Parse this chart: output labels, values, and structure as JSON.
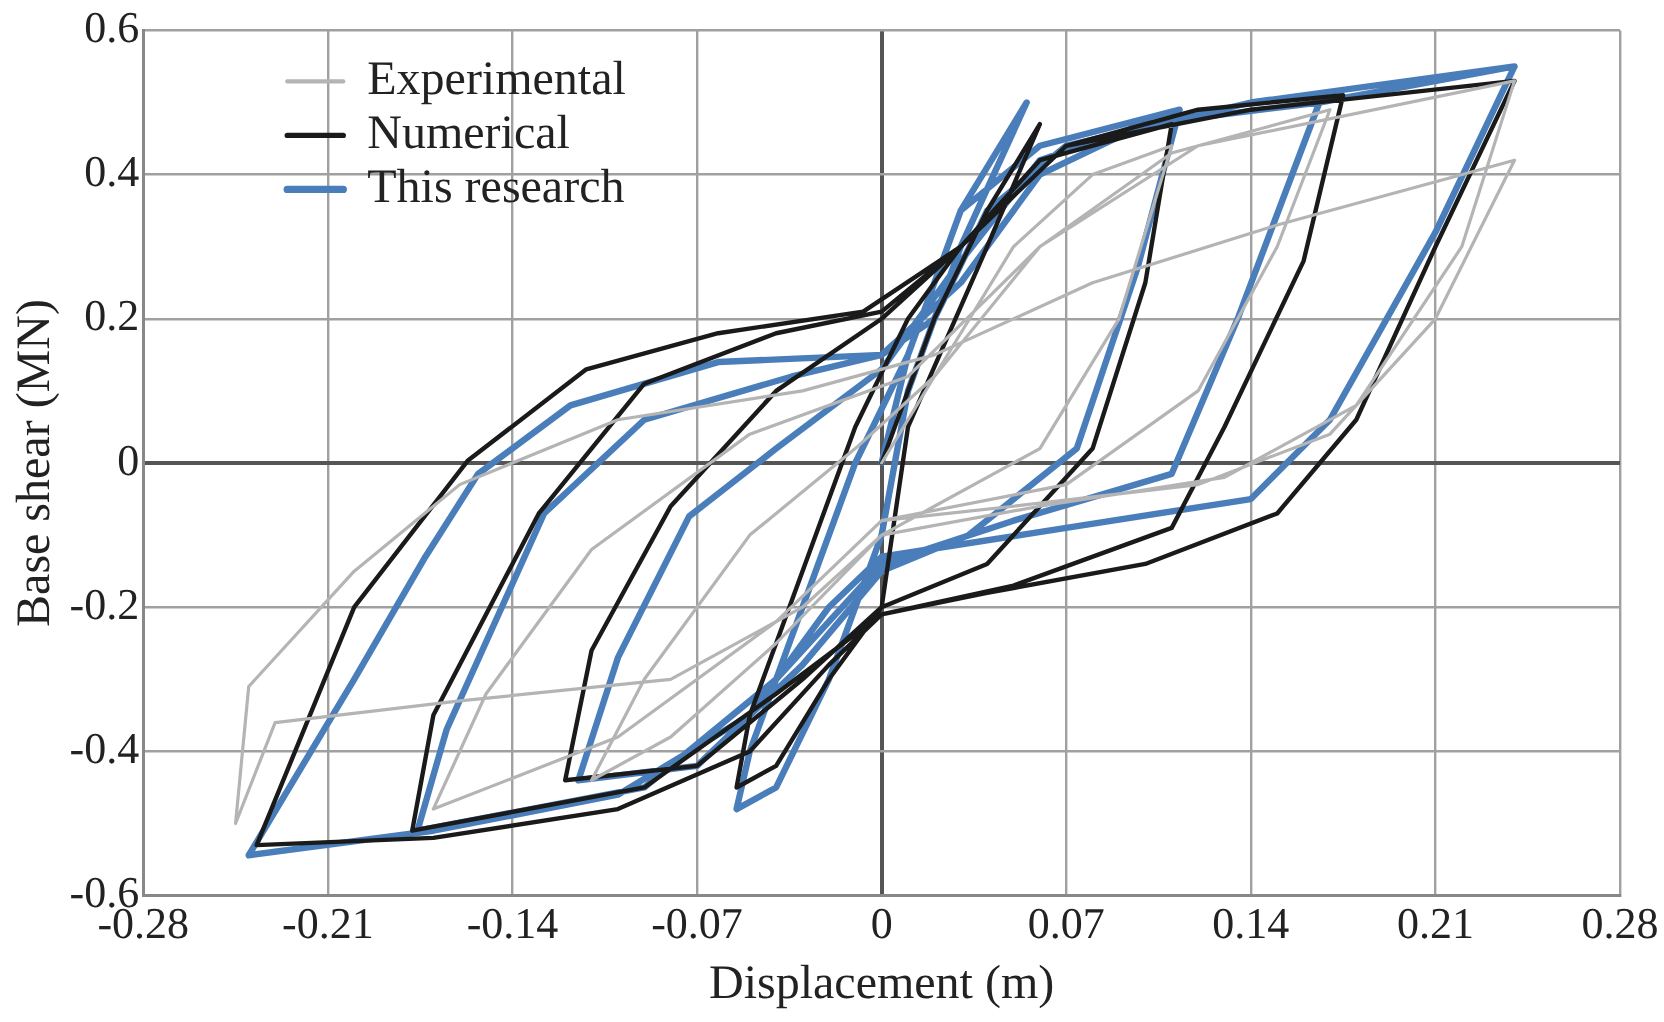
{
  "chart_data": {
    "type": "line",
    "xlabel": "Displacement (m)",
    "ylabel": "Base shear (MN)",
    "xlim": [
      -0.28,
      0.28
    ],
    "xticks": [
      -0.28,
      -0.21,
      -0.14,
      -0.07,
      0,
      0.07,
      0.14,
      0.21,
      0.28
    ],
    "ylim": [
      -0.6,
      0.6
    ],
    "yticks": [
      -0.6,
      -0.4,
      -0.2,
      0,
      0.2,
      0.4,
      0.6
    ],
    "grid": true,
    "legend": "top left",
    "marker": "none",
    "line_style": "solid",
    "series": [
      {
        "name": "Experimental",
        "color": "#b4b4b4",
        "x": [
          0,
          0.02,
          0.05,
          0.08,
          0.11,
          0.09,
          0.06,
          0.02,
          0,
          -0.04,
          -0.08,
          -0.11,
          -0.09,
          -0.05,
          -0.01,
          0.02,
          0.06,
          0.11,
          0.17,
          0.15,
          0.12,
          0.07,
          0,
          -0.04,
          -0.1,
          -0.17,
          -0.15,
          -0.11,
          -0.05,
          0.01,
          0.06,
          0.12,
          0.24,
          0.22,
          0.18,
          0.13,
          0.06,
          0,
          -0.03,
          -0.08,
          -0.16,
          -0.23,
          -0.245,
          -0.24,
          -0.2,
          -0.16,
          -0.1,
          -0.03,
          0.02,
          0.08,
          0.15,
          0.24,
          0.21,
          0.17,
          0.12,
          0.05,
          0
        ],
        "values": [
          0,
          0.12,
          0.3,
          0.4,
          0.44,
          0.2,
          0.02,
          -0.06,
          -0.1,
          -0.25,
          -0.38,
          -0.44,
          -0.3,
          -0.1,
          0.02,
          0.12,
          0.3,
          0.43,
          0.49,
          0.3,
          0.1,
          -0.03,
          -0.08,
          -0.22,
          -0.38,
          -0.48,
          -0.32,
          -0.12,
          0.04,
          0.12,
          0.3,
          0.44,
          0.53,
          0.3,
          0.08,
          -0.02,
          -0.06,
          -0.1,
          -0.2,
          -0.3,
          -0.33,
          -0.36,
          -0.5,
          -0.31,
          -0.15,
          -0.03,
          0.06,
          0.1,
          0.15,
          0.25,
          0.33,
          0.42,
          0.2,
          0.04,
          -0.03,
          -0.06,
          -0.08
        ]
      },
      {
        "name": "Numerical",
        "color": "#1a1a1a",
        "x": [
          0,
          0.02,
          0.04,
          0.06,
          0.04,
          0.01,
          0,
          -0.02,
          -0.04,
          -0.055,
          -0.05,
          -0.03,
          -0.01,
          0.01,
          0.03,
          0.06,
          0.11,
          0.1,
          0.08,
          0.04,
          0,
          -0.03,
          -0.07,
          -0.12,
          -0.11,
          -0.08,
          -0.04,
          0,
          0.03,
          0.07,
          0.12,
          0.175,
          0.16,
          0.13,
          0.11,
          0.05,
          0,
          -0.04,
          -0.09,
          -0.178,
          -0.17,
          -0.13,
          -0.09,
          -0.04,
          0,
          0.03,
          0.07,
          0.14,
          0.24,
          0.21,
          0.18,
          0.15,
          0.1,
          0.04,
          0,
          -0.02,
          -0.05,
          -0.1,
          -0.17,
          -0.237,
          -0.2,
          -0.157,
          -0.112,
          -0.062,
          -0.007,
          0.03,
          0.07,
          0.14,
          0.24
        ],
        "values": [
          0,
          0.2,
          0.35,
          0.47,
          0.3,
          0.05,
          -0.2,
          -0.3,
          -0.42,
          -0.45,
          -0.35,
          -0.15,
          0.05,
          0.2,
          0.3,
          0.42,
          0.47,
          0.25,
          0.02,
          -0.14,
          -0.2,
          -0.3,
          -0.42,
          -0.44,
          -0.26,
          -0.06,
          0.1,
          0.2,
          0.3,
          0.44,
          0.49,
          0.51,
          0.28,
          0.05,
          -0.09,
          -0.17,
          -0.21,
          -0.32,
          -0.45,
          -0.51,
          -0.35,
          -0.07,
          0.11,
          0.18,
          0.21,
          0.3,
          0.44,
          0.49,
          0.53,
          0.3,
          0.06,
          -0.07,
          -0.14,
          -0.18,
          -0.21,
          -0.28,
          -0.4,
          -0.48,
          -0.52,
          -0.53,
          -0.2,
          0.003,
          0.13,
          0.18,
          0.21,
          0.3,
          0.44,
          0.49,
          0.53
        ]
      },
      {
        "name": "This research",
        "color": "#4a7ebb",
        "x": [
          0,
          0.01,
          0.03,
          0.055,
          0.03,
          0.01,
          0,
          -0.02,
          -0.04,
          -0.055,
          -0.05,
          -0.03,
          -0.01,
          0.01,
          0.03,
          0.06,
          0.113,
          0.097,
          0.074,
          0.033,
          0,
          -0.03,
          -0.07,
          -0.115,
          -0.1,
          -0.073,
          -0.04,
          0,
          0.03,
          0.06,
          0.1,
          0.166,
          0.135,
          0.11,
          0.05,
          0,
          -0.04,
          -0.09,
          -0.176,
          -0.165,
          -0.128,
          -0.09,
          -0.034,
          0,
          0.03,
          0.06,
          0.1,
          0.166,
          0.24,
          0.21,
          0.17,
          0.14,
          0.07,
          0,
          -0.02,
          -0.05,
          -0.1,
          -0.17,
          -0.24,
          -0.2,
          -0.173,
          -0.153,
          -0.118,
          -0.062,
          0,
          0.02,
          0.04,
          0.07,
          0.14,
          0.24
        ],
        "values": [
          0,
          0.15,
          0.35,
          0.5,
          0.3,
          0.1,
          -0.1,
          -0.3,
          -0.45,
          -0.48,
          -0.4,
          -0.2,
          0,
          0.15,
          0.35,
          0.44,
          0.49,
          0.27,
          0.02,
          -0.1,
          -0.15,
          -0.28,
          -0.42,
          -0.44,
          -0.27,
          -0.074,
          0.02,
          0.13,
          0.28,
          0.42,
          0.47,
          0.5,
          0.2,
          -0.015,
          -0.08,
          -0.14,
          -0.3,
          -0.45,
          -0.51,
          -0.37,
          -0.07,
          0.06,
          0.12,
          0.15,
          0.25,
          0.4,
          0.47,
          0.5,
          0.55,
          0.32,
          0.06,
          -0.05,
          -0.09,
          -0.13,
          -0.2,
          -0.35,
          -0.46,
          -0.51,
          -0.544,
          -0.3,
          -0.13,
          -0.015,
          0.08,
          0.14,
          0.15,
          0.2,
          0.35,
          0.44,
          0.5,
          0.55
        ]
      }
    ]
  }
}
